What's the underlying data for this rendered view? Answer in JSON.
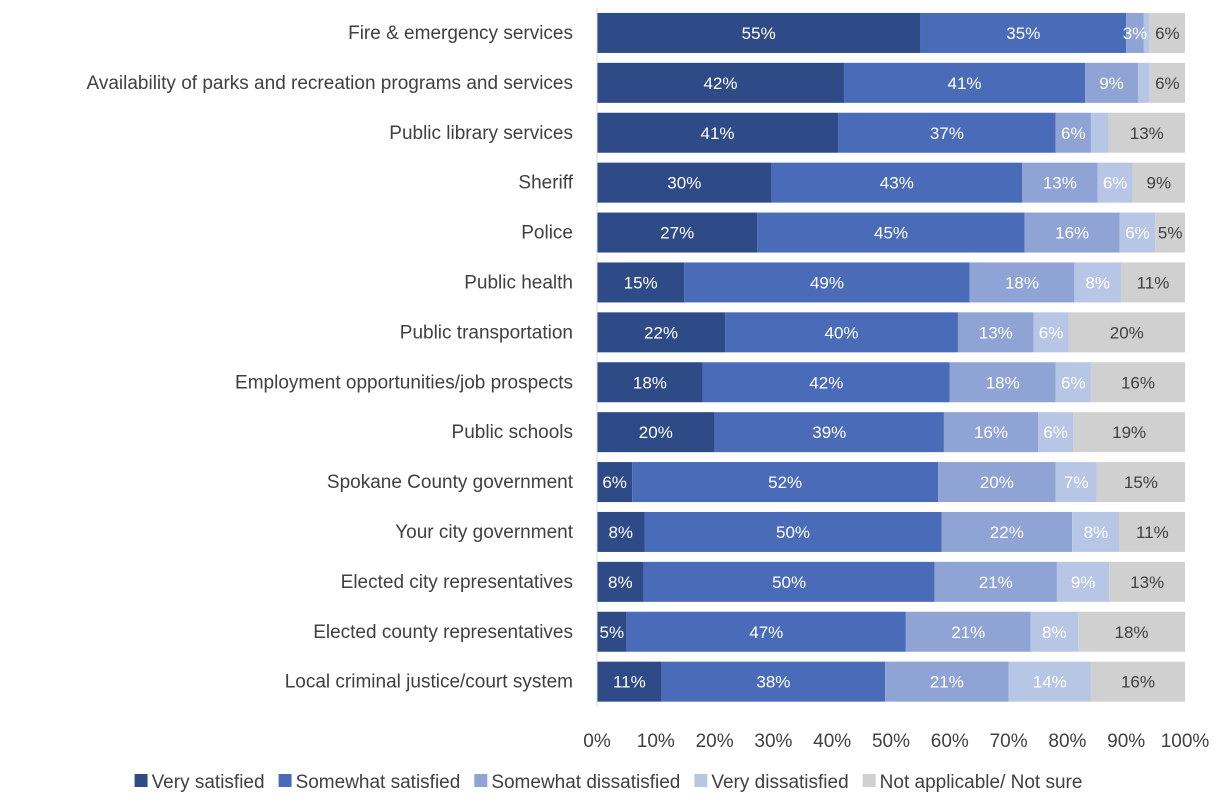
{
  "chart_data": {
    "type": "bar",
    "orientation": "horizontal",
    "stacked": "percent",
    "categories": [
      "Fire & emergency services",
      "Availability of parks and recreation programs and services",
      "Public library services",
      "Sheriff",
      "Police",
      "Public health",
      "Public transportation",
      "Employment opportunities/job prospects",
      "Public schools",
      "Spokane County government",
      "Your city government",
      "Elected city representatives",
      "Elected county representatives",
      "Local criminal justice/court system"
    ],
    "series": [
      {
        "name": "Very satisfied",
        "color": "#2f4b87",
        "values": [
          55,
          42,
          41,
          30,
          27,
          15,
          22,
          18,
          20,
          6,
          8,
          8,
          5,
          11
        ]
      },
      {
        "name": "Somewhat satisfied",
        "color": "#4a6cb8",
        "values": [
          35,
          41,
          37,
          43,
          45,
          49,
          40,
          42,
          39,
          52,
          50,
          50,
          47,
          38
        ]
      },
      {
        "name": "Somewhat dissatisfied",
        "color": "#8fa3d4",
        "values": [
          3,
          9,
          6,
          13,
          16,
          18,
          13,
          18,
          16,
          20,
          22,
          21,
          21,
          21
        ]
      },
      {
        "name": "Very dissatisfied",
        "color": "#b8c6e6",
        "values": [
          1,
          2,
          3,
          6,
          6,
          8,
          6,
          6,
          6,
          7,
          8,
          9,
          8,
          14
        ]
      },
      {
        "name": "Not applicable/ Not sure",
        "color": "#d0d0d0",
        "values": [
          6,
          6,
          13,
          9,
          5,
          11,
          20,
          16,
          19,
          15,
          11,
          13,
          18,
          16
        ]
      }
    ],
    "data_labels": [
      [
        "55%",
        "35%",
        "3%",
        "",
        "6%"
      ],
      [
        "42%",
        "41%",
        "9%",
        "",
        "6%"
      ],
      [
        "41%",
        "37%",
        "6%",
        "",
        "13%"
      ],
      [
        "30%",
        "43%",
        "13%",
        "6%",
        "9%"
      ],
      [
        "27%",
        "45%",
        "16%",
        "6%",
        "5%"
      ],
      [
        "15%",
        "49%",
        "18%",
        "8%",
        "11%"
      ],
      [
        "22%",
        "40%",
        "13%",
        "6%",
        "20%"
      ],
      [
        "18%",
        "42%",
        "18%",
        "6%",
        "16%"
      ],
      [
        "20%",
        "39%",
        "16%",
        "6%",
        "19%"
      ],
      [
        "6%",
        "52%",
        "20%",
        "7%",
        "15%"
      ],
      [
        "8%",
        "50%",
        "22%",
        "8%",
        "11%"
      ],
      [
        "8%",
        "50%",
        "21%",
        "9%",
        "13%"
      ],
      [
        "5%",
        "47%",
        "21%",
        "8%",
        "18%"
      ],
      [
        "11%",
        "38%",
        "21%",
        "14%",
        "16%"
      ]
    ],
    "x_ticks": [
      "0%",
      "10%",
      "20%",
      "30%",
      "40%",
      "50%",
      "60%",
      "70%",
      "80%",
      "90%",
      "100%"
    ],
    "xlim": [
      0,
      100
    ],
    "title": "",
    "xlabel": "",
    "ylabel": "",
    "grid": false,
    "legend_position": "bottom"
  }
}
